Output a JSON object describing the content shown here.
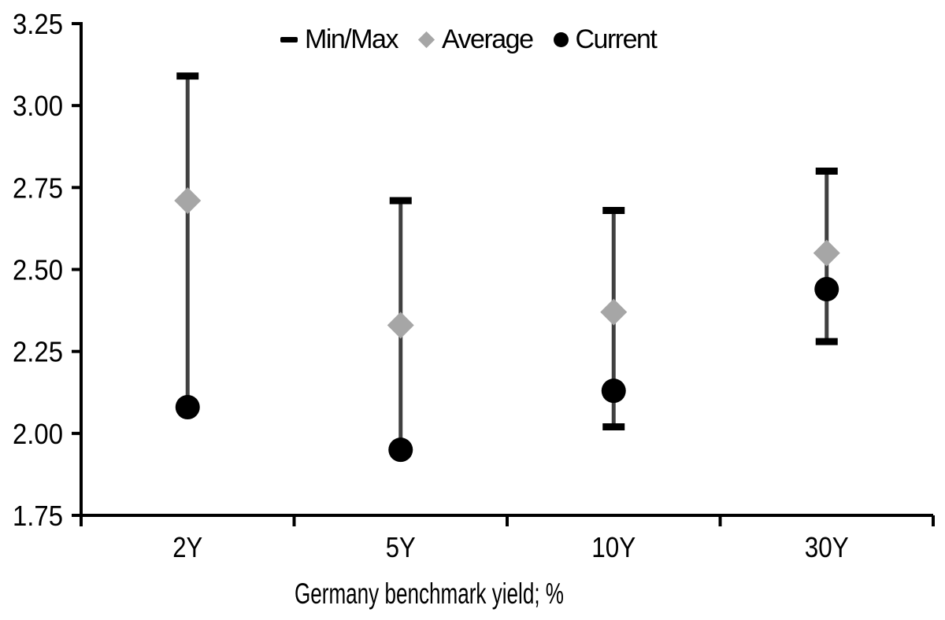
{
  "chart_data": {
    "type": "scatter",
    "title": "",
    "categories": [
      "2Y",
      "5Y",
      "10Y",
      "30Y"
    ],
    "series": [
      {
        "name": "Min/Max",
        "role": "range",
        "marker": "dash",
        "min": [
          2.08,
          1.95,
          2.02,
          2.28
        ],
        "max": [
          3.09,
          2.71,
          2.68,
          2.8
        ]
      },
      {
        "name": "Average",
        "role": "point",
        "marker": "diamond",
        "values": [
          2.71,
          2.33,
          2.37,
          2.55
        ]
      },
      {
        "name": "Current",
        "role": "point",
        "marker": "circle",
        "values": [
          2.08,
          1.95,
          2.13,
          2.44
        ]
      }
    ],
    "xlabel": "Germany benchmark yield; %",
    "ylabel": "",
    "ylim": [
      1.75,
      3.25
    ],
    "yticks": [
      1.75,
      2.0,
      2.25,
      2.5,
      2.75,
      3.0,
      3.25
    ],
    "ytick_labels": [
      "1.75",
      "2.00",
      "2.25",
      "2.50",
      "2.75",
      "3.00",
      "3.25"
    ],
    "legend_position": "top",
    "grid": false
  },
  "colors": {
    "background": "#ffffff",
    "axis": "#000000",
    "text": "#000000",
    "range_line": "#404040",
    "minmax_cap": "#000000",
    "average_fill": "#a6a6a6",
    "current_fill": "#000000"
  }
}
